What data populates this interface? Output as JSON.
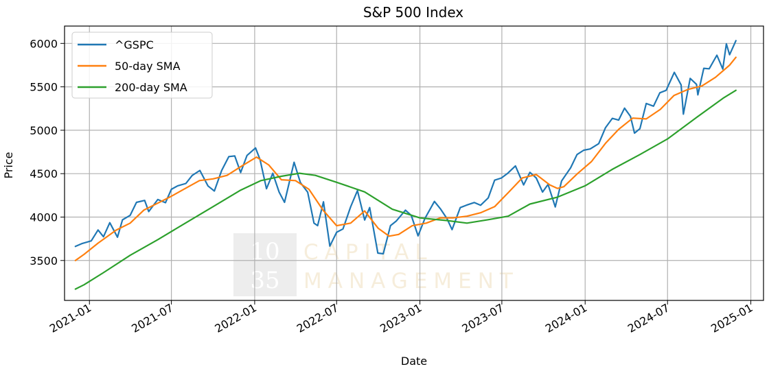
{
  "chart_data": {
    "type": "line",
    "title": "S&P 500 Index",
    "xlabel": "Date",
    "ylabel": "Price",
    "xlim": [
      "2020-11-07",
      "2025-01-29"
    ],
    "ylim": [
      3040,
      6200
    ],
    "x_ticks": [
      "2021-01",
      "2021-07",
      "2022-01",
      "2022-07",
      "2023-01",
      "2023-07",
      "2024-01",
      "2024-07",
      "2025-01"
    ],
    "y_ticks": [
      3500,
      4000,
      4500,
      5000,
      5500,
      6000
    ],
    "grid": true,
    "legend_position": "top-left",
    "watermark": {
      "number_line1": "10",
      "number_line2": "35",
      "word1": "CAPITAL",
      "word2": "MANAGEMENT"
    },
    "series": [
      {
        "name": "^GSPC",
        "color": "#1f77b4",
        "points": [
          [
            "2020-12-01",
            3662
          ],
          [
            "2020-12-15",
            3694
          ],
          [
            "2021-01-05",
            3726
          ],
          [
            "2021-01-20",
            3851
          ],
          [
            "2021-02-01",
            3773
          ],
          [
            "2021-02-15",
            3935
          ],
          [
            "2021-03-04",
            3768
          ],
          [
            "2021-03-15",
            3968
          ],
          [
            "2021-04-01",
            4020
          ],
          [
            "2021-04-15",
            4170
          ],
          [
            "2021-05-03",
            4192
          ],
          [
            "2021-05-12",
            4063
          ],
          [
            "2021-06-01",
            4202
          ],
          [
            "2021-06-18",
            4166
          ],
          [
            "2021-07-01",
            4320
          ],
          [
            "2021-07-15",
            4360
          ],
          [
            "2021-08-02",
            4387
          ],
          [
            "2021-08-16",
            4479
          ],
          [
            "2021-09-02",
            4537
          ],
          [
            "2021-09-20",
            4358
          ],
          [
            "2021-10-04",
            4300
          ],
          [
            "2021-10-20",
            4536
          ],
          [
            "2021-11-05",
            4697
          ],
          [
            "2021-11-18",
            4704
          ],
          [
            "2021-12-01",
            4513
          ],
          [
            "2021-12-15",
            4709
          ],
          [
            "2022-01-03",
            4796
          ],
          [
            "2022-01-13",
            4660
          ],
          [
            "2022-01-27",
            4326
          ],
          [
            "2022-02-10",
            4504
          ],
          [
            "2022-02-24",
            4288
          ],
          [
            "2022-03-08",
            4170
          ],
          [
            "2022-03-29",
            4631
          ],
          [
            "2022-04-12",
            4397
          ],
          [
            "2022-04-28",
            4287
          ],
          [
            "2022-05-12",
            3930
          ],
          [
            "2022-05-20",
            3901
          ],
          [
            "2022-06-02",
            4176
          ],
          [
            "2022-06-16",
            3666
          ],
          [
            "2022-07-01",
            3825
          ],
          [
            "2022-07-15",
            3863
          ],
          [
            "2022-08-01",
            4118
          ],
          [
            "2022-08-16",
            4305
          ],
          [
            "2022-09-01",
            3966
          ],
          [
            "2022-09-12",
            4110
          ],
          [
            "2022-09-30",
            3585
          ],
          [
            "2022-10-12",
            3577
          ],
          [
            "2022-10-28",
            3901
          ],
          [
            "2022-11-10",
            3956
          ],
          [
            "2022-11-30",
            4080
          ],
          [
            "2022-12-13",
            4019
          ],
          [
            "2022-12-28",
            3783
          ],
          [
            "2023-01-12",
            3983
          ],
          [
            "2023-02-02",
            4180
          ],
          [
            "2023-02-16",
            4090
          ],
          [
            "2023-03-02",
            3981
          ],
          [
            "2023-03-13",
            3855
          ],
          [
            "2023-03-31",
            4109
          ],
          [
            "2023-04-14",
            4137
          ],
          [
            "2023-05-01",
            4167
          ],
          [
            "2023-05-15",
            4136
          ],
          [
            "2023-06-01",
            4221
          ],
          [
            "2023-06-15",
            4425
          ],
          [
            "2023-06-30",
            4450
          ],
          [
            "2023-07-14",
            4505
          ],
          [
            "2023-07-31",
            4589
          ],
          [
            "2023-08-18",
            4370
          ],
          [
            "2023-09-01",
            4515
          ],
          [
            "2023-09-15",
            4450
          ],
          [
            "2023-09-29",
            4288
          ],
          [
            "2023-10-11",
            4376
          ],
          [
            "2023-10-27",
            4117
          ],
          [
            "2023-11-10",
            4415
          ],
          [
            "2023-11-30",
            4568
          ],
          [
            "2023-12-14",
            4720
          ],
          [
            "2023-12-29",
            4770
          ],
          [
            "2024-01-12",
            4784
          ],
          [
            "2024-01-31",
            4846
          ],
          [
            "2024-02-15",
            5030
          ],
          [
            "2024-03-01",
            5137
          ],
          [
            "2024-03-15",
            5117
          ],
          [
            "2024-03-28",
            5254
          ],
          [
            "2024-04-10",
            5160
          ],
          [
            "2024-04-19",
            4967
          ],
          [
            "2024-05-01",
            5018
          ],
          [
            "2024-05-15",
            5308
          ],
          [
            "2024-05-31",
            5277
          ],
          [
            "2024-06-14",
            5431
          ],
          [
            "2024-06-28",
            5460
          ],
          [
            "2024-07-16",
            5667
          ],
          [
            "2024-07-31",
            5522
          ],
          [
            "2024-08-05",
            5186
          ],
          [
            "2024-08-20",
            5597
          ],
          [
            "2024-09-03",
            5529
          ],
          [
            "2024-09-06",
            5408
          ],
          [
            "2024-09-19",
            5713
          ],
          [
            "2024-10-01",
            5708
          ],
          [
            "2024-10-18",
            5864
          ],
          [
            "2024-10-31",
            5705
          ],
          [
            "2024-11-08",
            5995
          ],
          [
            "2024-11-15",
            5870
          ],
          [
            "2024-11-29",
            6032
          ]
        ]
      },
      {
        "name": "50-day SMA",
        "color": "#ff7f0e",
        "points": [
          [
            "2020-12-01",
            3500
          ],
          [
            "2020-12-20",
            3570
          ],
          [
            "2021-01-20",
            3700
          ],
          [
            "2021-03-01",
            3850
          ],
          [
            "2021-04-01",
            3930
          ],
          [
            "2021-05-01",
            4080
          ],
          [
            "2021-06-01",
            4160
          ],
          [
            "2021-07-01",
            4240
          ],
          [
            "2021-08-01",
            4330
          ],
          [
            "2021-09-01",
            4420
          ],
          [
            "2021-10-01",
            4440
          ],
          [
            "2021-11-01",
            4480
          ],
          [
            "2021-12-01",
            4580
          ],
          [
            "2022-01-05",
            4690
          ],
          [
            "2022-02-01",
            4600
          ],
          [
            "2022-03-01",
            4430
          ],
          [
            "2022-04-01",
            4420
          ],
          [
            "2022-05-01",
            4320
          ],
          [
            "2022-06-01",
            4080
          ],
          [
            "2022-07-01",
            3900
          ],
          [
            "2022-08-01",
            3930
          ],
          [
            "2022-09-01",
            4070
          ],
          [
            "2022-10-01",
            3870
          ],
          [
            "2022-10-25",
            3780
          ],
          [
            "2022-11-15",
            3800
          ],
          [
            "2022-12-15",
            3900
          ],
          [
            "2023-01-15",
            3930
          ],
          [
            "2023-02-15",
            3990
          ],
          [
            "2023-03-15",
            3990
          ],
          [
            "2023-04-15",
            4010
          ],
          [
            "2023-05-15",
            4050
          ],
          [
            "2023-06-15",
            4120
          ],
          [
            "2023-07-15",
            4280
          ],
          [
            "2023-08-15",
            4450
          ],
          [
            "2023-09-15",
            4490
          ],
          [
            "2023-10-15",
            4370
          ],
          [
            "2023-11-01",
            4330
          ],
          [
            "2023-11-15",
            4350
          ],
          [
            "2023-12-15",
            4500
          ],
          [
            "2024-01-15",
            4640
          ],
          [
            "2024-02-15",
            4850
          ],
          [
            "2024-03-15",
            5010
          ],
          [
            "2024-04-15",
            5140
          ],
          [
            "2024-05-15",
            5130
          ],
          [
            "2024-06-15",
            5240
          ],
          [
            "2024-07-15",
            5400
          ],
          [
            "2024-08-15",
            5470
          ],
          [
            "2024-09-15",
            5510
          ],
          [
            "2024-10-15",
            5610
          ],
          [
            "2024-11-15",
            5750
          ],
          [
            "2024-11-29",
            5840
          ]
        ]
      },
      {
        "name": "200-day SMA",
        "color": "#2ca02c",
        "points": [
          [
            "2020-12-01",
            3170
          ],
          [
            "2020-12-20",
            3220
          ],
          [
            "2021-02-01",
            3360
          ],
          [
            "2021-04-01",
            3560
          ],
          [
            "2021-06-01",
            3740
          ],
          [
            "2021-08-01",
            3930
          ],
          [
            "2021-10-01",
            4120
          ],
          [
            "2021-12-01",
            4310
          ],
          [
            "2022-01-15",
            4420
          ],
          [
            "2022-03-01",
            4470
          ],
          [
            "2022-04-10",
            4505
          ],
          [
            "2022-05-15",
            4480
          ],
          [
            "2022-07-01",
            4400
          ],
          [
            "2022-09-01",
            4290
          ],
          [
            "2022-11-01",
            4090
          ],
          [
            "2023-01-01",
            3990
          ],
          [
            "2023-03-01",
            3960
          ],
          [
            "2023-04-15",
            3930
          ],
          [
            "2023-06-01",
            3970
          ],
          [
            "2023-07-15",
            4010
          ],
          [
            "2023-09-01",
            4150
          ],
          [
            "2023-11-01",
            4230
          ],
          [
            "2024-01-01",
            4360
          ],
          [
            "2024-03-01",
            4550
          ],
          [
            "2024-05-01",
            4720
          ],
          [
            "2024-07-01",
            4900
          ],
          [
            "2024-09-01",
            5140
          ],
          [
            "2024-11-01",
            5370
          ],
          [
            "2024-11-29",
            5460
          ]
        ]
      }
    ]
  }
}
